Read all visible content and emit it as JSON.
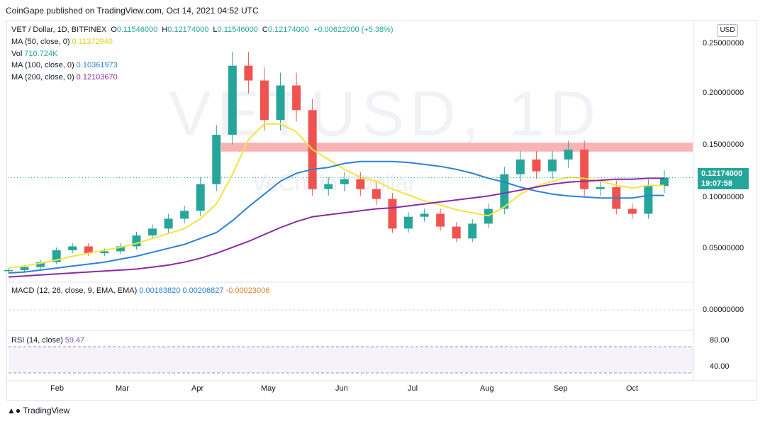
{
  "header": {
    "publisher_text": "CoinGape published on TradingView.com, Oct 14, 2021 04:52 UTC"
  },
  "symbol": {
    "name": "VET / Dollar, 1D, BITFINEX",
    "o_label": "O",
    "o": "0.11546000",
    "h_label": "H",
    "h": "0.12174000",
    "l_label": "L",
    "l": "0.11546000",
    "c_label": "C",
    "c": "0.12174000",
    "change": "+0.00622000 (+5.38%)"
  },
  "watermark": {
    "symbol": "VETUSD, 1D",
    "name": "VeChain / Dollar"
  },
  "indicators": {
    "ma50": {
      "label": "MA (50, close, 0)",
      "value": "0.11372940",
      "color": "#f5e33e"
    },
    "vol": {
      "label": "Vol",
      "value": "710.724K"
    },
    "ma100": {
      "label": "MA (100, close, 0)",
      "value": "0.10361973",
      "color": "#2a82d6"
    },
    "ma200": {
      "label": "MA (200, close, 0)",
      "value": "0.12103670",
      "color": "#8c2aa6"
    },
    "macd": {
      "label": "MACD (12, 26, close, 9, EMA, EMA)",
      "v1": "0.00183820",
      "v2": "0.00206827",
      "v3": "-0.00023006"
    },
    "rsi": {
      "label": "RSI (14, close)",
      "value": "59.47"
    }
  },
  "price_axis": {
    "currency": "USD",
    "ticks": [
      "0.25000000",
      "0.20000000",
      "0.15000000",
      "0.10000000",
      "0.05000000"
    ],
    "last_price": "0.12174000",
    "countdown": "19:07:58"
  },
  "macd_axis": {
    "ticks": [
      "0.00000000"
    ]
  },
  "rsi_axis": {
    "ticks": [
      "80.00",
      "40.00"
    ]
  },
  "time_axis": {
    "labels": [
      "Feb",
      "Mar",
      "Apr",
      "May",
      "Jun",
      "Jul",
      "Aug",
      "Sep",
      "Oct"
    ]
  },
  "footer": {
    "brand": "TradingView"
  },
  "chart_data": {
    "type": "candlestick",
    "title": "VET / Dollar, 1D, BITFINEX",
    "ylim": [
      0.02,
      0.28
    ],
    "x": [
      "2021-01-15",
      "2021-01-22",
      "2021-01-29",
      "2021-02-05",
      "2021-02-12",
      "2021-02-19",
      "2021-02-26",
      "2021-03-05",
      "2021-03-12",
      "2021-03-19",
      "2021-03-26",
      "2021-04-02",
      "2021-04-09",
      "2021-04-16",
      "2021-04-19",
      "2021-04-23",
      "2021-04-30",
      "2021-05-07",
      "2021-05-14",
      "2021-05-19",
      "2021-05-26",
      "2021-06-02",
      "2021-06-09",
      "2021-06-16",
      "2021-06-22",
      "2021-06-30",
      "2021-07-07",
      "2021-07-14",
      "2021-07-21",
      "2021-07-28",
      "2021-08-04",
      "2021-08-11",
      "2021-08-18",
      "2021-08-25",
      "2021-09-01",
      "2021-09-06",
      "2021-09-10",
      "2021-09-17",
      "2021-09-24",
      "2021-10-01",
      "2021-10-08",
      "2021-10-14"
    ],
    "close": [
      0.028,
      0.031,
      0.036,
      0.048,
      0.052,
      0.045,
      0.047,
      0.052,
      0.063,
      0.07,
      0.08,
      0.088,
      0.115,
      0.165,
      0.235,
      0.22,
      0.18,
      0.215,
      0.19,
      0.11,
      0.115,
      0.12,
      0.11,
      0.1,
      0.07,
      0.082,
      0.085,
      0.072,
      0.06,
      0.075,
      0.09,
      0.125,
      0.14,
      0.128,
      0.14,
      0.15,
      0.11,
      0.112,
      0.09,
      0.085,
      0.113,
      0.1217
    ],
    "series": [
      {
        "name": "MA (50, close, 0)",
        "values": [
          0.03,
          0.032,
          0.035,
          0.038,
          0.042,
          0.045,
          0.048,
          0.051,
          0.055,
          0.06,
          0.065,
          0.07,
          0.08,
          0.095,
          0.125,
          0.16,
          0.176,
          0.176,
          0.168,
          0.15,
          0.14,
          0.13,
          0.122,
          0.118,
          0.11,
          0.104,
          0.098,
          0.094,
          0.089,
          0.086,
          0.083,
          0.092,
          0.105,
          0.113,
          0.118,
          0.122,
          0.121,
          0.118,
          0.114,
          0.111,
          0.1137,
          0.1137
        ]
      },
      {
        "name": "MA (100, close, 0)",
        "values": [
          0.025,
          0.026,
          0.028,
          0.03,
          0.032,
          0.034,
          0.036,
          0.039,
          0.042,
          0.046,
          0.05,
          0.054,
          0.06,
          0.066,
          0.078,
          0.092,
          0.105,
          0.118,
          0.126,
          0.13,
          0.132,
          0.136,
          0.138,
          0.138,
          0.138,
          0.137,
          0.135,
          0.133,
          0.13,
          0.126,
          0.121,
          0.117,
          0.112,
          0.108,
          0.105,
          0.103,
          0.102,
          0.101,
          0.101,
          0.101,
          0.1036,
          0.1036
        ]
      },
      {
        "name": "MA (200, close, 0)",
        "values": [
          0.021,
          0.022,
          0.023,
          0.024,
          0.025,
          0.026,
          0.027,
          0.028,
          0.029,
          0.031,
          0.033,
          0.036,
          0.04,
          0.045,
          0.051,
          0.057,
          0.064,
          0.071,
          0.077,
          0.082,
          0.084,
          0.086,
          0.088,
          0.09,
          0.091,
          0.093,
          0.095,
          0.097,
          0.099,
          0.101,
          0.103,
          0.106,
          0.109,
          0.112,
          0.115,
          0.117,
          0.118,
          0.119,
          0.12,
          0.12,
          0.121,
          0.121
        ]
      }
    ],
    "resistance_zone": [
      0.148,
      0.157
    ]
  }
}
